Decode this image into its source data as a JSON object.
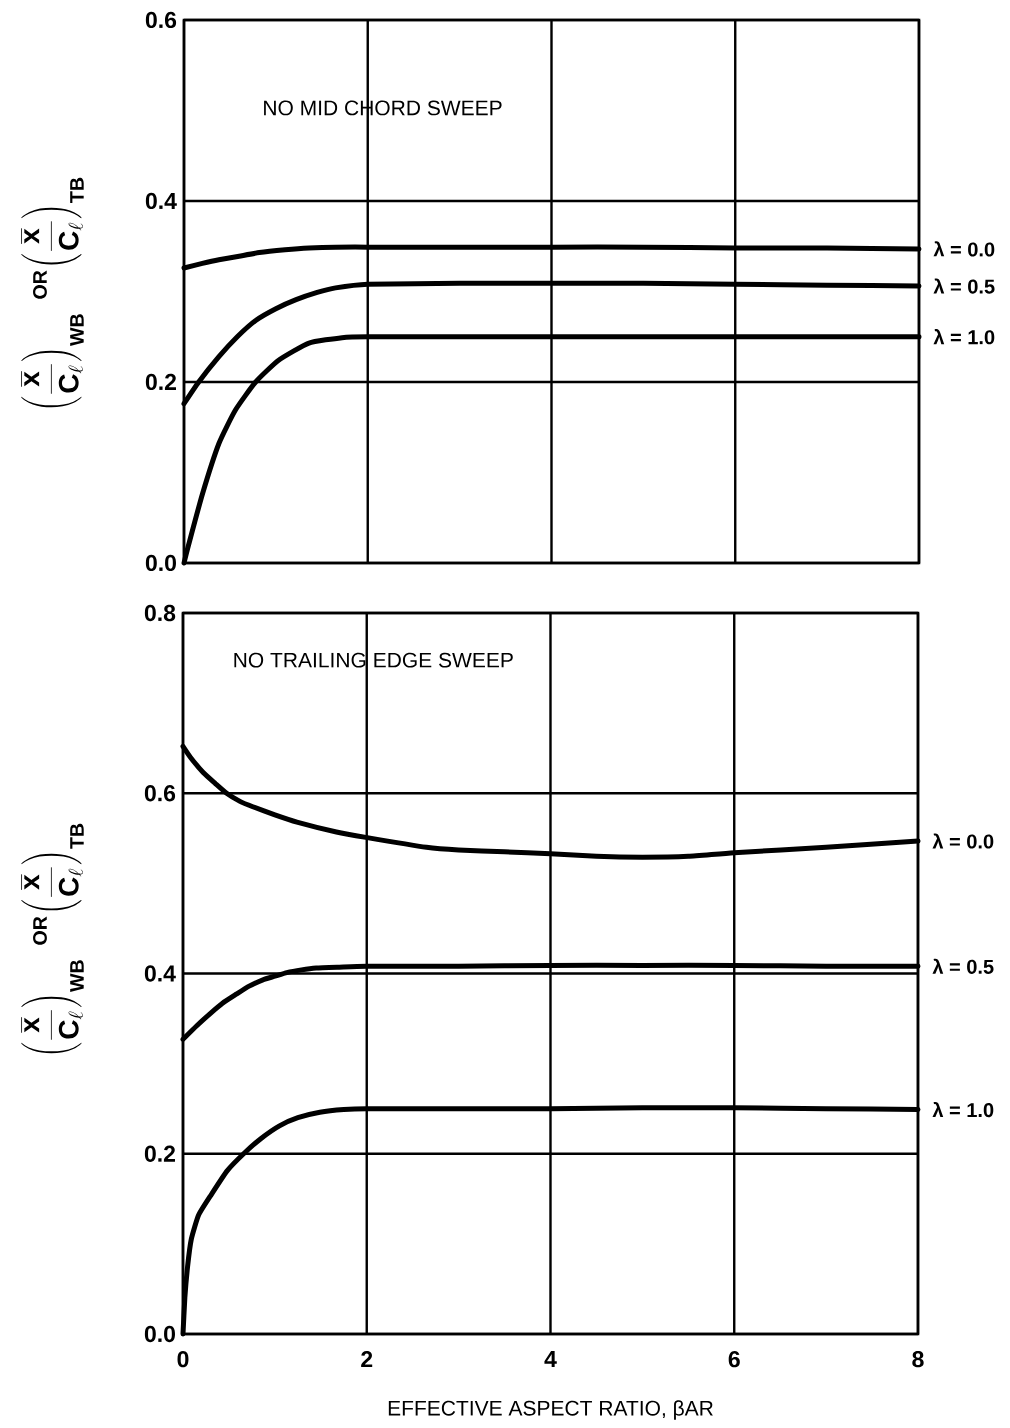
{
  "chart_data": [
    {
      "type": "line",
      "title": "NO MID CHORD SWEEP",
      "ylabel": "\\left(\\frac{\\overline{\\mathbf{x}}}{\\mathbf{C}_{\\ell}}\\right)_{\\mathbf{WB}}\\;{}^{\\mathbf{OR}}\\!\\left(\\frac{\\overline{\\mathbf{x}}}{\\mathbf{C}_{\\ell}}\\right)_{\\mathbf{TB}}",
      "xlim": [
        0,
        8
      ],
      "ylim": [
        0,
        0.6
      ],
      "xticks": [
        0,
        2,
        4,
        6,
        8
      ],
      "yticks": [
        {
          "value": 0,
          "label": "0.0"
        },
        0.2,
        0.4,
        0.6
      ],
      "grid": true,
      "marker": "none",
      "line_style": "solid",
      "tick_labels": "y",
      "series": [
        {
          "name": "λ = 0.0",
          "color": "#000000",
          "x": [
            0,
            0.2,
            0.38,
            0.6,
            0.82,
            1.1,
            1.36,
            1.65,
            2,
            3,
            4,
            5,
            6,
            7,
            8
          ],
          "values": [
            0.326,
            0.331,
            0.335,
            0.339,
            0.343,
            0.346,
            0.348,
            0.349,
            0.349,
            0.349,
            0.349,
            0.349,
            0.348,
            0.348,
            0.347
          ]
        },
        {
          "name": "λ = 0.5",
          "color": "#000000",
          "x": [
            0,
            0.16,
            0.38,
            0.58,
            0.78,
            1,
            1.22,
            1.45,
            1.65,
            2,
            3,
            4,
            5,
            6,
            7,
            8
          ],
          "values": [
            0.176,
            0.2,
            0.228,
            0.25,
            0.268,
            0.281,
            0.291,
            0.299,
            0.304,
            0.308,
            0.309,
            0.309,
            0.309,
            0.308,
            0.307,
            0.306
          ]
        },
        {
          "name": "λ = 1.0",
          "color": "#000000",
          "x": [
            0,
            0.05,
            0.2,
            0.38,
            0.56,
            0.78,
            1.03,
            1.36,
            1.72,
            2,
            3,
            4,
            5,
            6,
            7,
            8
          ],
          "values": [
            0,
            0.02,
            0.076,
            0.132,
            0.169,
            0.2,
            0.224,
            0.243,
            0.249,
            0.25,
            0.25,
            0.25,
            0.25,
            0.25,
            0.25,
            0.25
          ]
        }
      ]
    },
    {
      "type": "line",
      "title": "NO TRAILING EDGE SWEEP",
      "xlabel": "EFFECTIVE ASPECT RATIO, βAR",
      "ylabel": "\\left(\\frac{\\overline{\\mathbf{x}}}{\\mathbf{C}_{\\ell}}\\right)_{\\mathbf{WB}}\\;{}^{\\mathbf{OR}}\\!\\left(\\frac{\\overline{\\mathbf{x}}}{\\mathbf{C}_{\\ell}}\\right)_{\\mathbf{TB}}",
      "xlim": [
        0,
        8
      ],
      "ylim": [
        0,
        0.8
      ],
      "xticks": [
        0,
        2,
        4,
        6,
        8
      ],
      "yticks": [
        {
          "value": 0,
          "label": "0.0"
        },
        0.2,
        0.4,
        0.6,
        0.8
      ],
      "grid": true,
      "marker": "none",
      "line_style": "solid",
      "series": [
        {
          "name": "λ = 0.0",
          "color": "#000000",
          "x": [
            0,
            0.08,
            0.22,
            0.35,
            0.475,
            0.62,
            0.76,
            1,
            1.24,
            1.67,
            1.99,
            2.65,
            3,
            3.5,
            4,
            4.5,
            5,
            5.5,
            6,
            7,
            8
          ],
          "values": [
            0.652,
            0.64,
            0.623,
            0.611,
            0.6,
            0.591,
            0.585,
            0.576,
            0.568,
            0.557,
            0.551,
            0.54,
            0.537,
            0.535,
            0.533,
            0.53,
            0.529,
            0.53,
            0.534,
            0.54,
            0.547
          ]
        },
        {
          "name": "λ = 0.5",
          "color": "#000000",
          "x": [
            0,
            0.15,
            0.29,
            0.43,
            0.58,
            0.72,
            0.87,
            1,
            1.13,
            1.29,
            1.45,
            1.7,
            2,
            3,
            4,
            5,
            6,
            7,
            8
          ],
          "values": [
            0.327,
            0.342,
            0.355,
            0.367,
            0.377,
            0.386,
            0.393,
            0.397,
            0.401,
            0.404,
            0.406,
            0.407,
            0.408,
            0.408,
            0.409,
            0.409,
            0.409,
            0.408,
            0.408
          ]
        },
        {
          "name": "λ = 1.0",
          "color": "#000000",
          "x": [
            0,
            0.02,
            0.05,
            0.09,
            0.17,
            0.31,
            0.48,
            0.66,
            0.85,
            1.05,
            1.25,
            1.49,
            1.75,
            2,
            3,
            4,
            5,
            6,
            7,
            8
          ],
          "values": [
            0,
            0.04,
            0.075,
            0.105,
            0.132,
            0.155,
            0.181,
            0.2,
            0.217,
            0.231,
            0.24,
            0.246,
            0.249,
            0.25,
            0.25,
            0.25,
            0.251,
            0.251,
            0.25,
            0.249
          ]
        }
      ]
    }
  ]
}
